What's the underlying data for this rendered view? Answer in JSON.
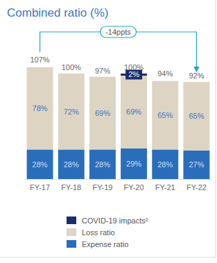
{
  "chart_data": {
    "type": "bar",
    "title": "Combined ratio (%)",
    "stacked": true,
    "data_labels": true,
    "tick_labels": "x",
    "legend": "bottom",
    "categories": [
      "FY-17",
      "FY-18",
      "FY-19",
      "FY-20",
      "FY-21",
      "FY-22"
    ],
    "ylim": [
      0,
      125
    ],
    "series": [
      {
        "name": "Expense ratio",
        "color": "#2a6ebb",
        "values": [
          28,
          28,
          28,
          29,
          28,
          27
        ],
        "value_labels": [
          "28%",
          "28%",
          "28%",
          "29%",
          "28%",
          "27%"
        ]
      },
      {
        "name": "Loss ratio",
        "color": "#ddd4c4",
        "values": [
          78,
          72,
          69,
          69,
          65,
          65
        ],
        "value_labels": [
          "78%",
          "72%",
          "69%",
          "69%",
          "65%",
          "65%"
        ]
      },
      {
        "name": "COVID-19 impacts²",
        "color": "#1b2d6b",
        "values": [
          null,
          null,
          null,
          2,
          null,
          null
        ],
        "value_labels": [
          null,
          null,
          null,
          "2%",
          null,
          null
        ]
      }
    ],
    "totals": {
      "values": [
        107,
        100,
        97,
        100,
        94,
        92
      ],
      "value_labels": [
        "107%",
        "100%",
        "97%",
        "100%",
        "94%",
        "92%"
      ]
    },
    "annotation": "-14ppts"
  }
}
